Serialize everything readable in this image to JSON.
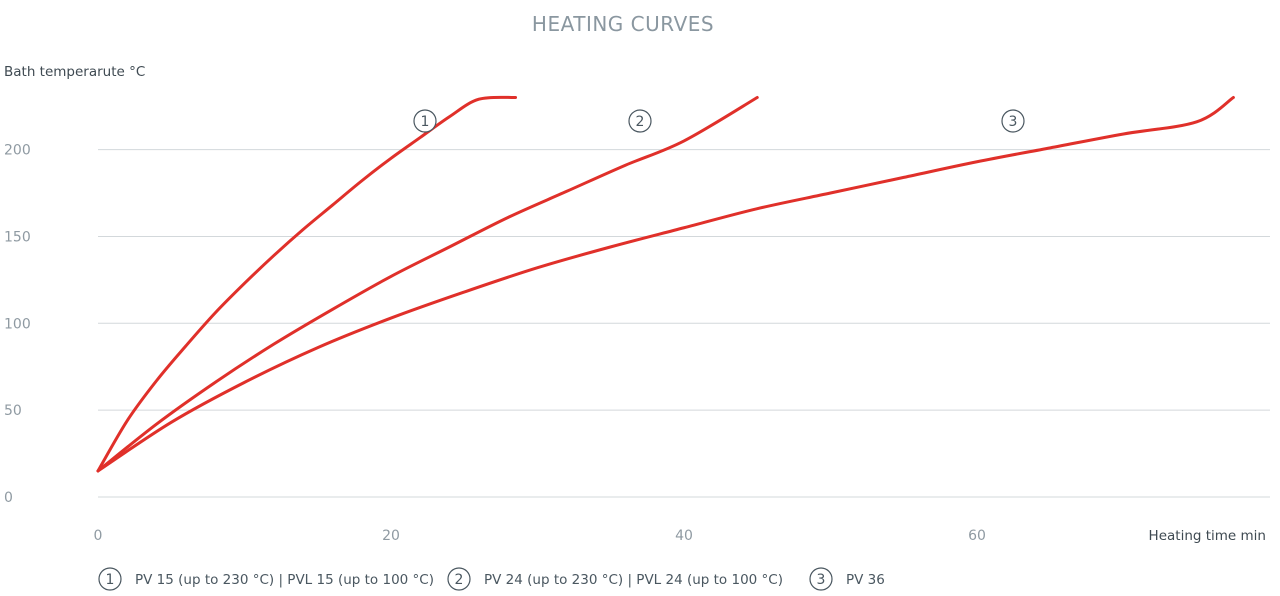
{
  "chart_data": {
    "type": "line",
    "title": "HEATING CURVES",
    "ylabel": "Bath temperarute °C",
    "xlabel": "Heating time min",
    "xlim": [
      0,
      80
    ],
    "ylim": [
      0,
      230
    ],
    "x_ticks": [
      0,
      20,
      40,
      60
    ],
    "y_ticks": [
      0,
      50,
      100,
      150,
      200
    ],
    "grid": "horizontal",
    "line_color": "#e0302a",
    "series": [
      {
        "marker": "1",
        "x": [
          0,
          2,
          4,
          6,
          8,
          10,
          12,
          14,
          16,
          18,
          20,
          22,
          24,
          26,
          28.5
        ],
        "y": [
          15,
          44,
          67,
          87,
          106,
          123,
          139,
          154,
          168,
          182,
          195,
          207,
          219,
          229,
          230
        ]
      },
      {
        "marker": "2",
        "x": [
          0,
          4,
          8,
          12,
          16,
          20,
          24,
          28,
          32,
          36,
          40,
          45
        ],
        "y": [
          15,
          42,
          66,
          88,
          108,
          127,
          144,
          161,
          176,
          191,
          205,
          230
        ]
      },
      {
        "marker": "3",
        "x": [
          0,
          5,
          10,
          15,
          20,
          25,
          30,
          35,
          40,
          45,
          50,
          55,
          60,
          65,
          70,
          75,
          77.5
        ],
        "y": [
          15,
          43,
          66,
          86,
          103,
          118,
          132,
          144,
          155,
          166,
          175,
          184,
          193,
          201,
          209,
          216,
          230
        ]
      }
    ],
    "legend": {
      "placement": "bottom",
      "entries": [
        {
          "marker": "1",
          "text": "PV 15 (up to 230 °C) | PVL 15 (up to 100 °C)"
        },
        {
          "marker": "2",
          "text": "PV 24 (up to 230 °C) | PVL 24 (up to 100 °C)"
        },
        {
          "marker": "3",
          "text": "PV 36"
        }
      ]
    }
  }
}
